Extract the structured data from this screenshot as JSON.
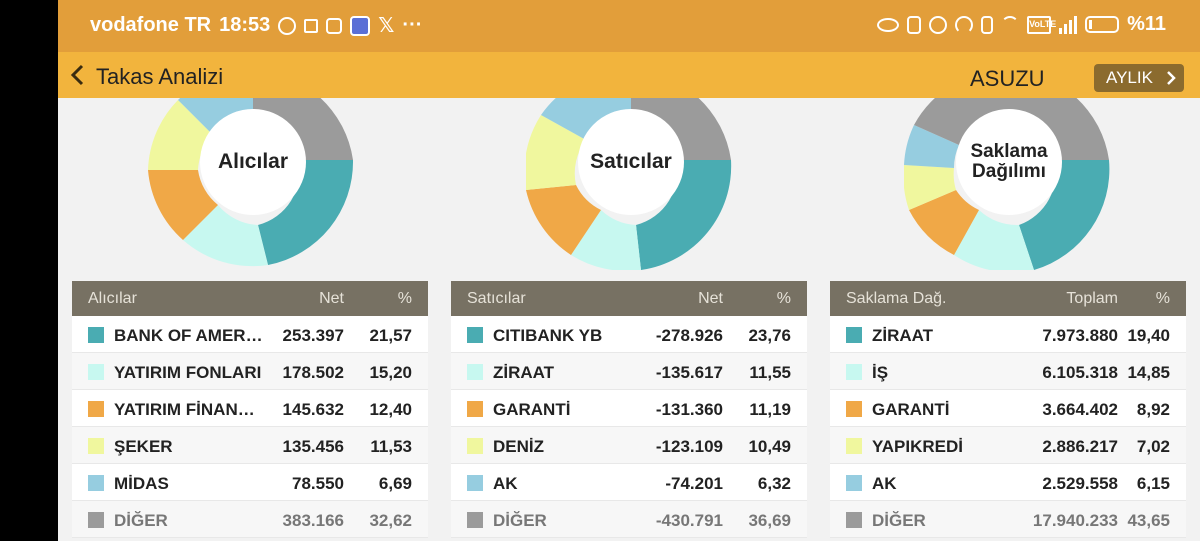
{
  "status_bar": {
    "carrier": "vodafone TR",
    "time": "18:53",
    "volte": "VoLTE",
    "battery": "%11"
  },
  "app_bar": {
    "title": "Takas Analizi",
    "stock": "ASUZU",
    "period": "AYLIK"
  },
  "colors": [
    "#4aacb2",
    "#c7f8f0",
    "#f0a847",
    "#f0f79e",
    "#96cde0",
    "#9b9b9b"
  ],
  "panels": [
    {
      "donut_label": "Alıcılar",
      "header": {
        "name": "Alıcılar",
        "value": "Net",
        "pct": "%"
      },
      "rows": [
        {
          "name": "BANK OF AMERI…",
          "value": "253.397",
          "pct": "21,57"
        },
        {
          "name": "YATIRIM FONLARI",
          "value": "178.502",
          "pct": "15,20"
        },
        {
          "name": "YATIRIM FİNANS…",
          "value": "145.632",
          "pct": "12,40"
        },
        {
          "name": "ŞEKER",
          "value": "135.456",
          "pct": "11,53"
        },
        {
          "name": "MİDAS",
          "value": "78.550",
          "pct": "6,69"
        },
        {
          "name": "DİĞER",
          "value": "383.166",
          "pct": "32,62"
        }
      ]
    },
    {
      "donut_label": "Satıcılar",
      "header": {
        "name": "Satıcılar",
        "value": "Net",
        "pct": "%"
      },
      "rows": [
        {
          "name": "CITIBANK YB",
          "value": "-278.926",
          "pct": "23,76"
        },
        {
          "name": "ZİRAAT",
          "value": "-135.617",
          "pct": "11,55"
        },
        {
          "name": "GARANTİ",
          "value": "-131.360",
          "pct": "11,19"
        },
        {
          "name": "DENİZ",
          "value": "-123.109",
          "pct": "10,49"
        },
        {
          "name": "AK",
          "value": "-74.201",
          "pct": "6,32"
        },
        {
          "name": "DİĞER",
          "value": "-430.791",
          "pct": "36,69"
        }
      ]
    },
    {
      "donut_label_line1": "Saklama",
      "donut_label_line2": "Dağılımı",
      "header": {
        "name": "Saklama Dağ.",
        "value": "Toplam",
        "pct": "%"
      },
      "rows": [
        {
          "name": "ZİRAAT",
          "value": "7.973.880",
          "pct": "19,40"
        },
        {
          "name": "İŞ",
          "value": "6.105.318",
          "pct": "14,85"
        },
        {
          "name": "GARANTİ",
          "value": "3.664.402",
          "pct": "8,92"
        },
        {
          "name": "YAPIKREDİ",
          "value": "2.886.217",
          "pct": "7,02"
        },
        {
          "name": "AK",
          "value": "2.529.558",
          "pct": "6,15"
        },
        {
          "name": "DİĞER",
          "value": "17.940.233",
          "pct": "43,65"
        }
      ]
    }
  ]
}
